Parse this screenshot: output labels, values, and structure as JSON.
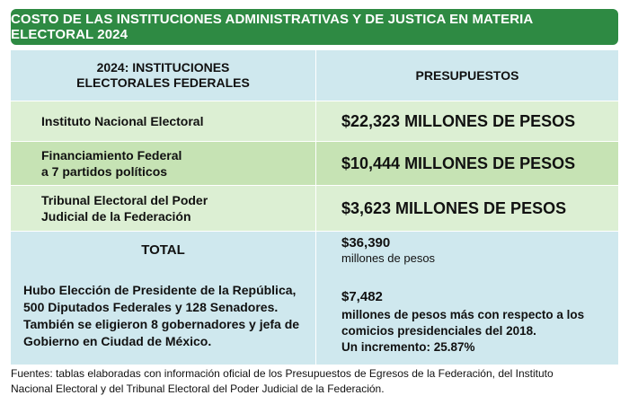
{
  "title": "COSTO DE LAS INSTITUCIONES ADMINISTRATIVAS Y DE JUSTICA EN MATERIA ELECTORAL 2024",
  "header": {
    "col1_line1": "2024: INSTITUCIONES",
    "col1_line2": "ELECTORALES FEDERALES",
    "col2": "PRESUPUESTOS"
  },
  "rows": [
    {
      "name_line1": "Instituto Nacional Electoral",
      "name_line2": "",
      "amount": "$22,323 MILLONES DE PESOS"
    },
    {
      "name_line1": "Financiamiento Federal",
      "name_line2": "a 7 partidos políticos",
      "amount": "$10,444 MILLONES DE PESOS"
    },
    {
      "name_line1": "Tribunal Electoral del Poder",
      "name_line2": "Judicial de la Federación",
      "amount": "$3,623 MILLONES DE PESOS"
    }
  ],
  "total": {
    "label": "TOTAL",
    "note_lines": [
      "Hubo Elección de Presidente de la República,",
      "500 Diputados Federales y 128 Senadores.",
      "También se eligieron 8 gobernadores y jefa de",
      "Gobierno en Ciudad de México."
    ],
    "amount": "$36,390",
    "amount_unit": "millones de pesos",
    "difference": "$7,482",
    "difference_lines": [
      "millones de pesos más con respecto a los",
      "comicios presidenciales del 2018.",
      "Un incremento: 25.87%"
    ]
  },
  "footer_lines": [
    "Fuentes: tablas elaboradas con información oficial de los Presupuestos de Egresos de la Federación, del Instituto",
    "Nacional Electoral y del Tribunal Electoral del Poder Judicial de la Federación."
  ]
}
